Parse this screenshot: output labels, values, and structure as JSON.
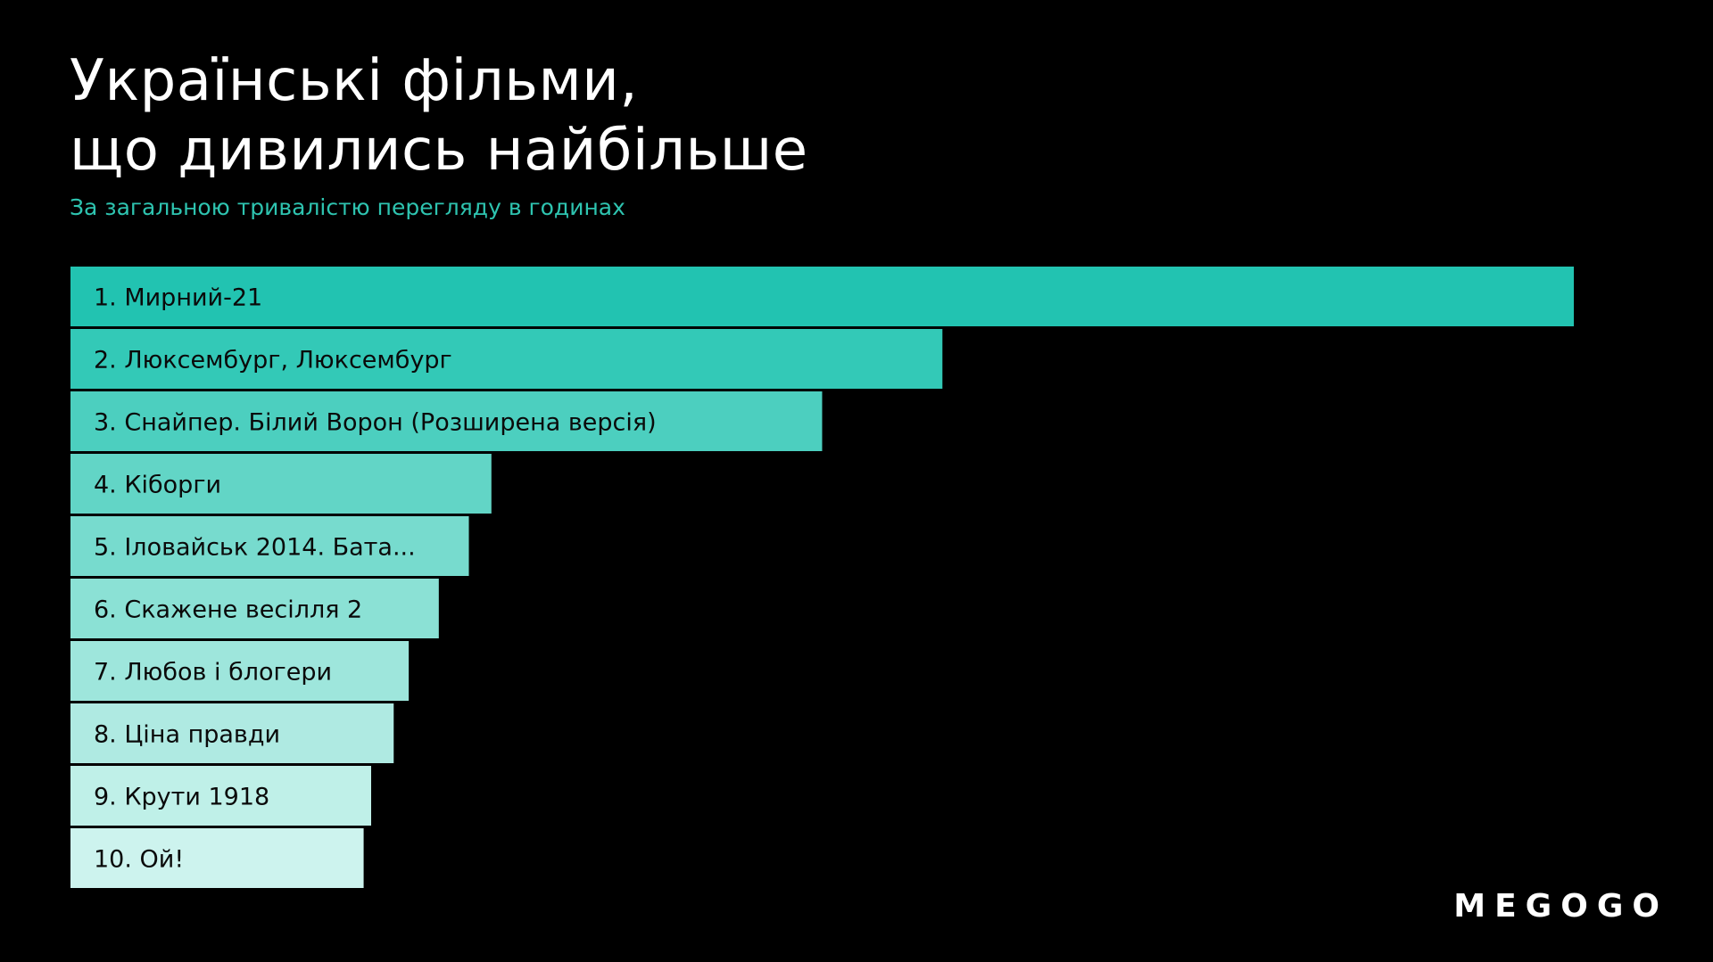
{
  "header": {
    "title_line1": "Українські фільми,",
    "title_line2": "що дивились найбільше",
    "subtitle": "За загальною тривалістю перегляду в годинах"
  },
  "brand": {
    "logo_text": "MEGOGO"
  },
  "colors": {
    "background": "#000000",
    "subtitle": "#2ec4b0",
    "bar_gradient": [
      "#22c3b1",
      "#33c9b7",
      "#4ccfbf",
      "#62d5c6",
      "#77dbce",
      "#8be1d5",
      "#9ee6dc",
      "#afeae2",
      "#bff0e8",
      "#cdf3ee"
    ]
  },
  "chart_data": {
    "type": "bar",
    "orientation": "horizontal",
    "categories": [
      "1. Мирний-21",
      "2. Люксембург, Люксембург",
      "3. Снайпер. Білий Ворон (Розширена версія)",
      "4. Кіборги",
      "5. Іловайськ 2014. Бата...",
      "6. Скажене весілля 2",
      "7. Любов і блогери",
      "8. Ціна правди",
      "9. Крути 1918",
      "10. Ой!"
    ],
    "values": [
      100,
      58,
      50,
      28,
      26.5,
      24.5,
      22.5,
      21.5,
      20,
      19.5
    ],
    "value_scale": "relative (no axis shown)",
    "grid": false,
    "legend": "none"
  }
}
